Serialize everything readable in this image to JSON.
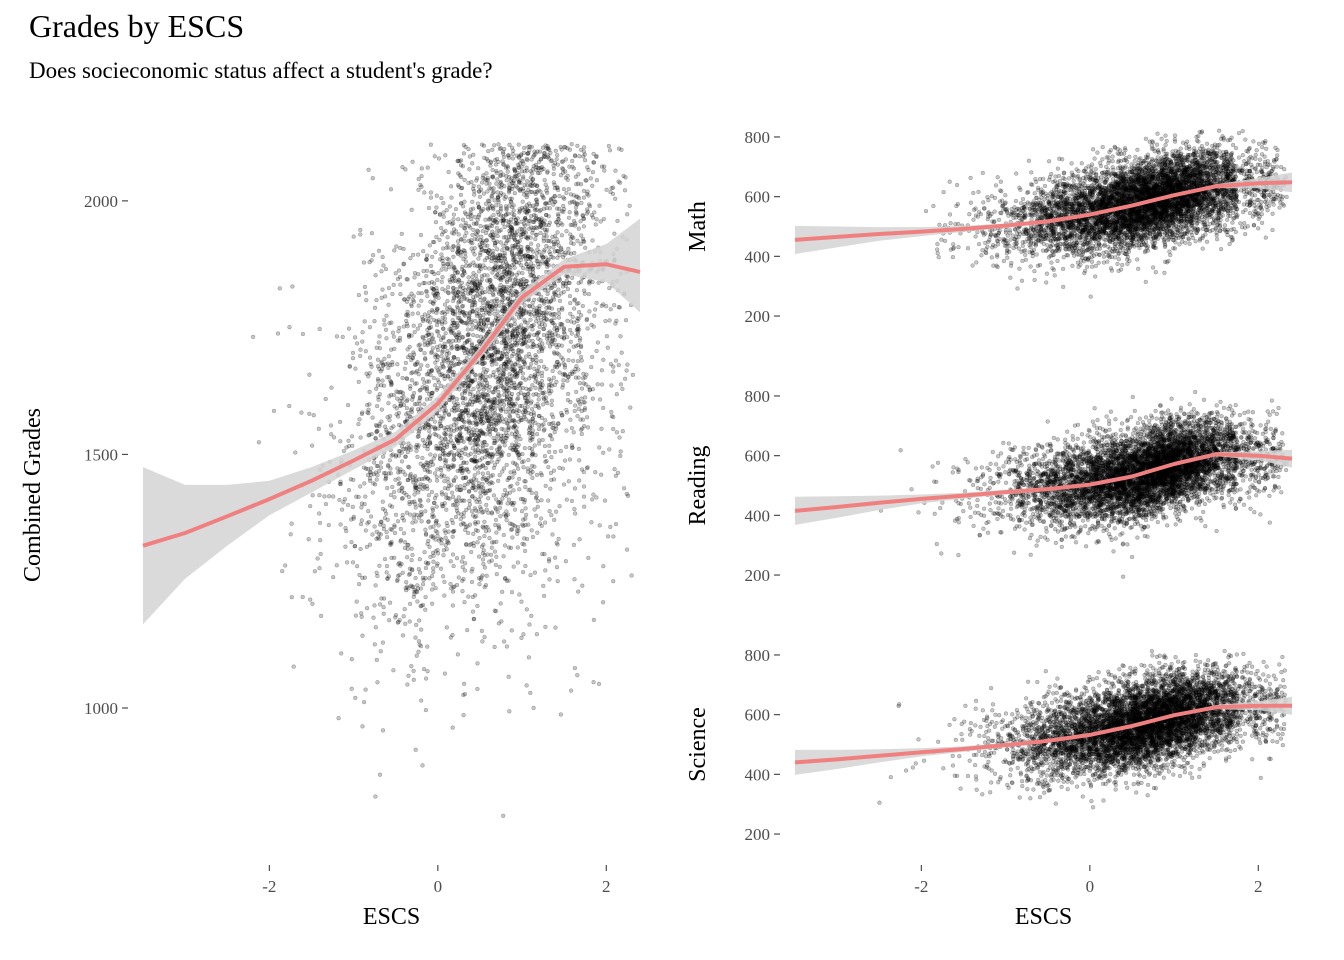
{
  "title": "Grades by ESCS",
  "subtitle": "Does socieconomic status affect a student's grade?",
  "colors": {
    "points": "#000000",
    "smooth_line": "#f08080",
    "ribbon": "#d3d3d3",
    "tick_text": "#4d4d4d"
  },
  "chart_data": [
    {
      "type": "scatter",
      "panel": "combined",
      "title": "",
      "xlabel": "ESCS",
      "ylabel": "Combined Grades",
      "xlim": [
        -3.5,
        2.4
      ],
      "ylim": [
        720,
        2120
      ],
      "x_ticks": [
        -2,
        0,
        2
      ],
      "y_ticks": [
        1000,
        1500,
        2000
      ],
      "grid": false,
      "point_count_approx": 9000,
      "point_style": "small translucent black dots",
      "smooth": {
        "x": [
          -3.5,
          -3.0,
          -2.5,
          -2.0,
          -1.5,
          -1.0,
          -0.5,
          0.0,
          0.5,
          1.0,
          1.5,
          2.0,
          2.4
        ],
        "y": [
          1320,
          1345,
          1378,
          1412,
          1448,
          1488,
          1530,
          1600,
          1700,
          1810,
          1870,
          1875,
          1860
        ],
        "ci_low": [
          1165,
          1255,
          1320,
          1380,
          1425,
          1470,
          1515,
          1585,
          1688,
          1798,
          1855,
          1840,
          1780
        ],
        "ci_high": [
          1475,
          1440,
          1440,
          1448,
          1475,
          1508,
          1545,
          1615,
          1712,
          1822,
          1885,
          1915,
          1965
        ]
      }
    },
    {
      "type": "scatter",
      "panel": "math",
      "title": "",
      "xlabel": "",
      "ylabel": "Math",
      "xlim": [
        -3.5,
        2.4
      ],
      "ylim": [
        170,
        830
      ],
      "x_ticks": [],
      "y_ticks": [
        200,
        400,
        600,
        800
      ],
      "grid": false,
      "point_style": "small translucent black dots",
      "smooth": {
        "x": [
          -3.5,
          -3.0,
          -2.5,
          -2.0,
          -1.5,
          -1.0,
          -0.5,
          0.0,
          0.5,
          1.0,
          1.5,
          2.0,
          2.4
        ],
        "y": [
          455,
          465,
          475,
          483,
          492,
          503,
          517,
          540,
          570,
          605,
          635,
          645,
          648
        ],
        "ci_low": [
          408,
          430,
          452,
          468,
          482,
          496,
          512,
          536,
          566,
          601,
          628,
          628,
          615
        ],
        "ci_high": [
          502,
          500,
          498,
          498,
          502,
          510,
          522,
          544,
          574,
          609,
          642,
          662,
          681
        ]
      }
    },
    {
      "type": "scatter",
      "panel": "reading",
      "title": "",
      "xlabel": "",
      "ylabel": "Reading",
      "xlim": [
        -3.5,
        2.4
      ],
      "ylim": [
        170,
        830
      ],
      "x_ticks": [],
      "y_ticks": [
        200,
        400,
        600,
        800
      ],
      "grid": false,
      "point_style": "small translucent black dots",
      "smooth": {
        "x": [
          -3.5,
          -3.0,
          -2.5,
          -2.0,
          -1.5,
          -1.0,
          -0.5,
          0.0,
          0.5,
          1.0,
          1.5,
          2.0,
          2.4
        ],
        "y": [
          415,
          428,
          442,
          455,
          466,
          478,
          488,
          503,
          530,
          572,
          605,
          600,
          590
        ],
        "ci_low": [
          368,
          392,
          418,
          440,
          456,
          470,
          482,
          498,
          526,
          568,
          598,
          585,
          560
        ],
        "ci_high": [
          462,
          464,
          466,
          470,
          476,
          486,
          494,
          508,
          534,
          576,
          612,
          615,
          620
        ]
      }
    },
    {
      "type": "scatter",
      "panel": "science",
      "title": "",
      "xlabel": "ESCS",
      "ylabel": "Science",
      "xlim": [
        -3.5,
        2.4
      ],
      "ylim": [
        170,
        830
      ],
      "x_ticks": [
        -2,
        0,
        2
      ],
      "y_ticks": [
        200,
        400,
        600,
        800
      ],
      "grid": false,
      "point_style": "small translucent black dots",
      "smooth": {
        "x": [
          -3.5,
          -3.0,
          -2.5,
          -2.0,
          -1.5,
          -1.0,
          -0.5,
          0.0,
          0.5,
          1.0,
          1.5,
          2.0,
          2.4
        ],
        "y": [
          440,
          450,
          462,
          474,
          485,
          498,
          512,
          532,
          562,
          598,
          625,
          630,
          630
        ],
        "ci_low": [
          398,
          418,
          440,
          460,
          476,
          491,
          507,
          528,
          558,
          594,
          618,
          615,
          600
        ],
        "ci_high": [
          482,
          482,
          484,
          488,
          494,
          505,
          517,
          536,
          566,
          602,
          632,
          645,
          660
        ]
      }
    }
  ]
}
